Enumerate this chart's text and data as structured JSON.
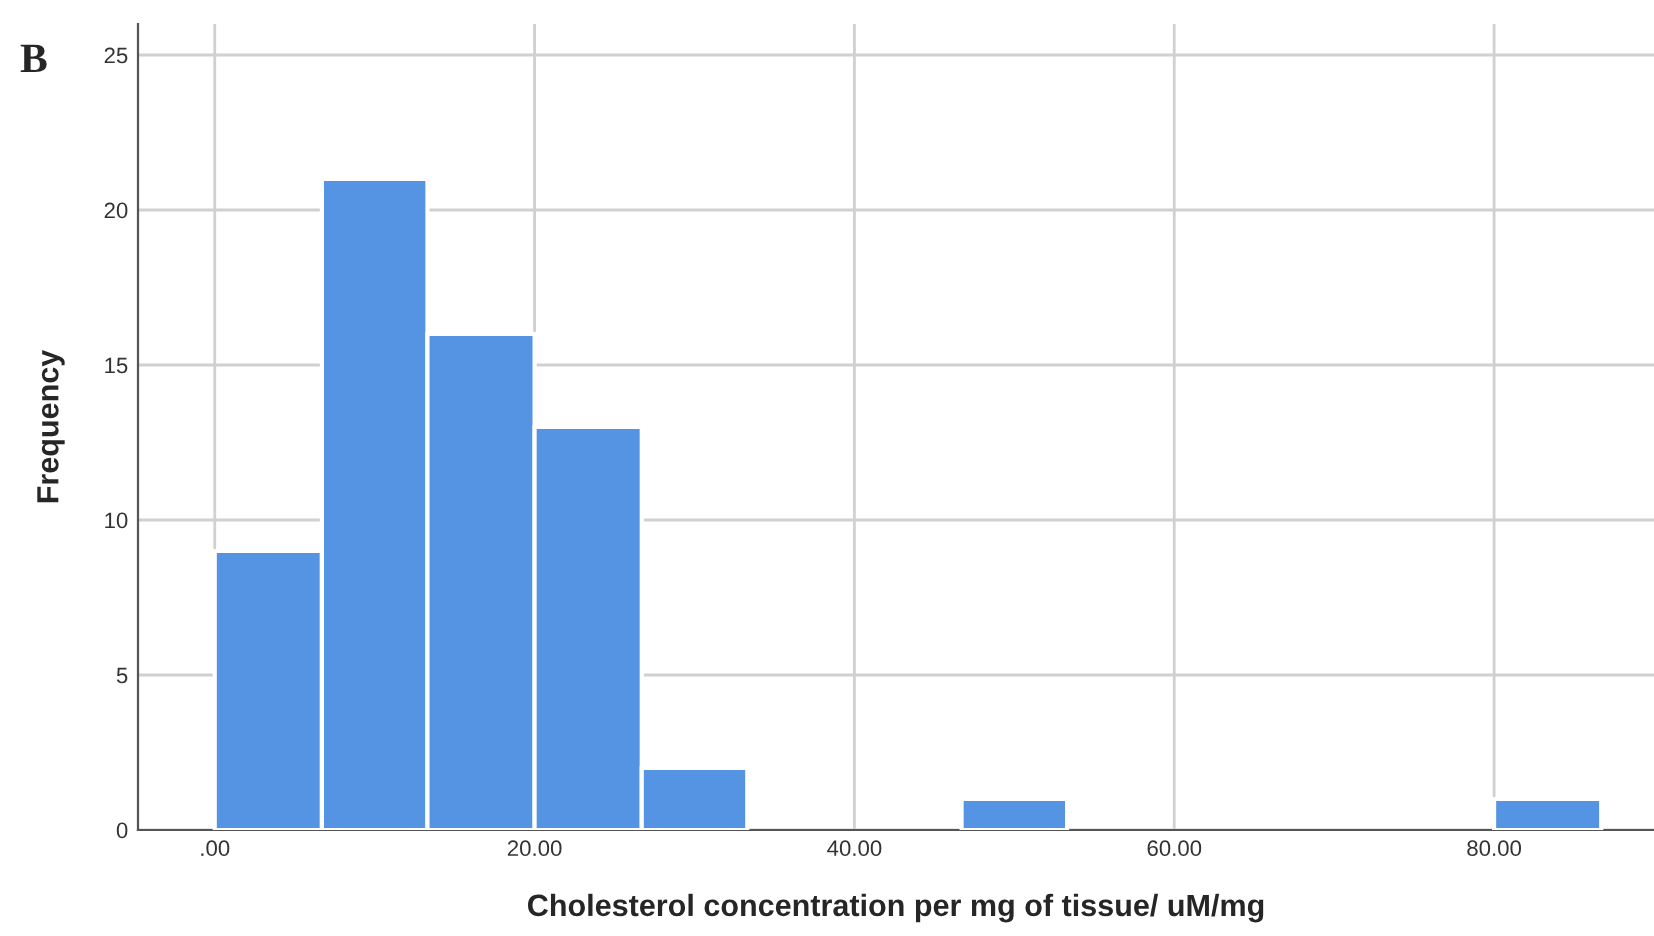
{
  "chart_data": {
    "type": "histogram",
    "xlabel": "Cholesterol concentration per mg of tissue/ uM/mg",
    "ylabel": "Frequency",
    "annotations": [
      "B"
    ],
    "bins": [
      0,
      6.7,
      13.3,
      20,
      26.7,
      33.3,
      46.7,
      53.3,
      80,
      86.7
    ],
    "values": [
      9,
      21,
      16,
      13,
      2,
      0,
      1,
      0,
      1
    ],
    "color": "#5594e2",
    "xlim": [
      -4.8,
      90
    ],
    "ylim": [
      0,
      26
    ],
    "xticks": [
      {
        "value": 0,
        "label": ".00"
      },
      {
        "value": 20,
        "label": "20.00"
      },
      {
        "value": 40,
        "label": "40.00"
      },
      {
        "value": 60,
        "label": "60.00"
      },
      {
        "value": 80,
        "label": "80.00"
      }
    ],
    "yticks": [
      0,
      5,
      10,
      15,
      20,
      25
    ],
    "grid": true
  }
}
